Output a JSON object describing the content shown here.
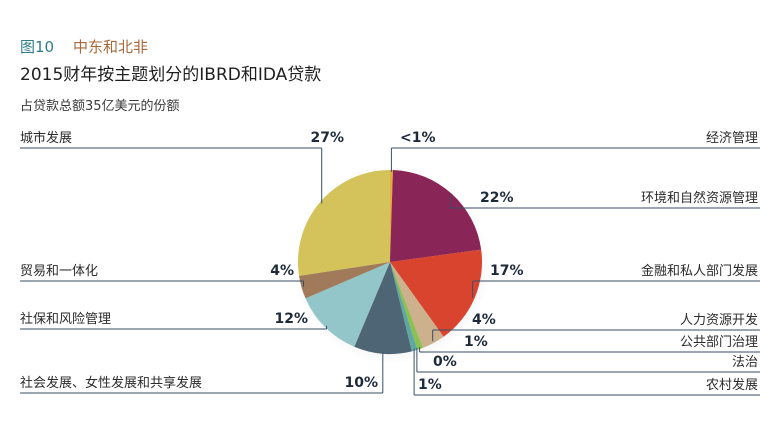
{
  "figure": {
    "number": "图10",
    "region": "中东和北非",
    "title": "2015财年按主题划分的IBRD和IDA贷款",
    "subtitle": "占贷款总额35亿美元的份额"
  },
  "chart_data": {
    "type": "pie",
    "title": "2015财年按主题划分的IBRD和IDA贷款",
    "subtitle": "占贷款总额35亿美元的份额",
    "slices": [
      {
        "label": "经济管理",
        "value_label": "<1%",
        "value": 0.5,
        "color": "#e6a93a"
      },
      {
        "label": "环境和自然资源管理",
        "value_label": "22%",
        "value": 22,
        "color": "#8a2557"
      },
      {
        "label": "金融和私人部门发展",
        "value_label": "17%",
        "value": 17,
        "color": "#d9442f"
      },
      {
        "label": "人力资源开发",
        "value_label": "4%",
        "value": 4,
        "color": "#cdb08c"
      },
      {
        "label": "公共部门治理",
        "value_label": "1%",
        "value": 1,
        "color": "#8cc152"
      },
      {
        "label": "法治",
        "value_label": "0%",
        "value": 0,
        "color": "#3a7d3a"
      },
      {
        "label": "农村发展",
        "value_label": "1%",
        "value": 1,
        "color": "#5fa8a0"
      },
      {
        "label": "社会发展、女性发展和共享发展",
        "value_label": "10%",
        "value": 10,
        "color": "#4d6575"
      },
      {
        "label": "社保和风险管理",
        "value_label": "12%",
        "value": 12,
        "color": "#93c6c9"
      },
      {
        "label": "贸易和一体化",
        "value_label": "4%",
        "value": 4,
        "color": "#a07a5a"
      },
      {
        "label": "城市发展",
        "value_label": "27%",
        "value": 27,
        "color": "#d4c25a"
      }
    ]
  }
}
